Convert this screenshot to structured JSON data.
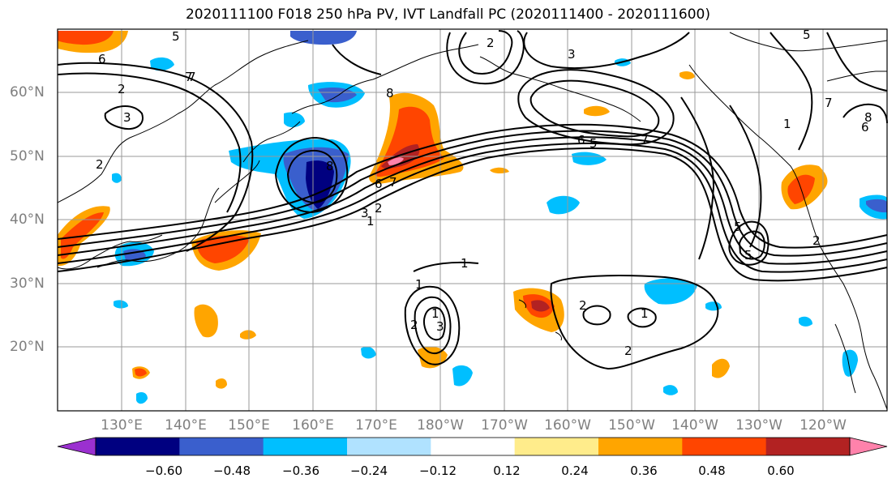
{
  "title": "2020111100 F018 250 hPa PV, IVT Landfall PC (2020111400 - 2020111600)",
  "lat_labels": [
    "60°N",
    "50°N",
    "40°N",
    "30°N",
    "20°N"
  ],
  "lon_labels": [
    "130°E",
    "140°E",
    "150°E",
    "160°E",
    "170°E",
    "180°W",
    "170°W",
    "160°W",
    "150°W",
    "140°W",
    "130°W",
    "120°W"
  ],
  "colorbar": {
    "tick_labels": [
      "−0.60",
      "−0.48",
      "−0.36",
      "−0.24",
      "−0.12",
      "0.12",
      "0.24",
      "0.36",
      "0.48",
      "0.60"
    ],
    "colors": [
      "#9b30d0",
      "#000080",
      "#3a5fcd",
      "#00bfff",
      "#b0e2ff",
      "#ffffff",
      "#ffec8b",
      "#ffa500",
      "#ff4500",
      "#b22222",
      "#ff82ab"
    ]
  },
  "contour_labels": [
    "6",
    "7",
    "7",
    "2",
    "3",
    "2",
    "8",
    "8",
    "1",
    "2",
    "3",
    "5",
    "6",
    "5",
    "7",
    "6",
    "5",
    "7",
    "6",
    "3",
    "2",
    "1",
    "1",
    "2",
    "1",
    "2",
    "2",
    "1",
    "2",
    "1",
    "5",
    "3",
    "5",
    "7",
    "8"
  ]
}
